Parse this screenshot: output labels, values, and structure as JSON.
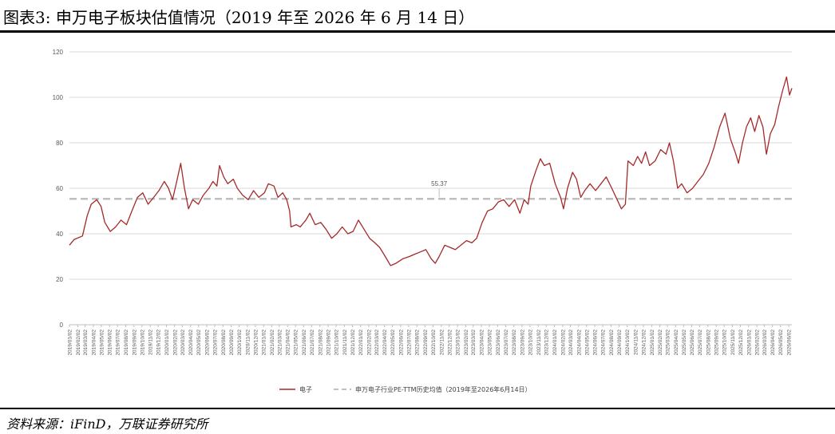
{
  "header": {
    "title": "图表3:  申万电子板块估值情况（2019 年至 2026 年 6 月 14 日）"
  },
  "footer": {
    "source": "资料来源：iFinD，万联证券研究所"
  },
  "chart_data": {
    "type": "line",
    "title": "",
    "xlabel": "",
    "ylabel": "",
    "ylim": [
      0,
      120
    ],
    "yticks": [
      0,
      20,
      40,
      60,
      80,
      100,
      120
    ],
    "grid": true,
    "legend_position": "bottom",
    "colors": {
      "series": "#a52a2a",
      "reference": "#bfbfbf",
      "grid": "#d9d9d9"
    },
    "x_tick_labels": [
      "2019/01/02",
      "2019/02/02",
      "2019/03/02",
      "2019/04/02",
      "2019/05/02",
      "2019/06/02",
      "2019/07/02",
      "2019/08/02",
      "2019/09/02",
      "2019/10/02",
      "2019/11/02",
      "2019/12/02",
      "2020/01/02",
      "2020/02/02",
      "2020/03/02",
      "2020/04/02",
      "2020/05/02",
      "2020/06/02",
      "2020/07/02",
      "2020/08/02",
      "2020/09/02",
      "2020/10/02",
      "2020/11/02",
      "2020/12/02",
      "2021/01/02",
      "2021/02/02",
      "2021/03/02",
      "2021/04/02",
      "2021/05/02",
      "2021/06/02",
      "2021/07/02",
      "2021/08/02",
      "2021/09/02",
      "2021/10/02",
      "2021/11/02",
      "2021/12/02",
      "2022/01/02",
      "2022/02/02",
      "2022/03/02",
      "2022/04/02",
      "2022/05/02",
      "2022/06/02",
      "2022/07/02",
      "2022/08/02",
      "2022/09/02",
      "2022/10/02",
      "2022/11/02",
      "2022/12/02",
      "2023/01/02",
      "2023/02/02",
      "2023/03/02",
      "2023/04/02",
      "2023/05/02",
      "2023/06/02",
      "2023/07/02",
      "2023/08/02",
      "2023/09/02",
      "2023/10/02",
      "2023/11/02",
      "2023/12/02",
      "2024/01/02",
      "2024/02/02",
      "2024/03/02",
      "2024/04/02",
      "2024/05/02",
      "2024/06/02",
      "2024/07/02",
      "2024/08/02",
      "2024/09/02",
      "2024/10/02",
      "2024/11/02",
      "2024/12/02",
      "2025/01/02",
      "2025/02/02",
      "2025/03/02",
      "2025/04/02",
      "2025/05/02",
      "2025/06/02",
      "2025/07/02",
      "2025/08/02",
      "2025/09/02",
      "2025/10/02",
      "2025/11/02",
      "2025/12/02",
      "2026/01/02",
      "2026/02/02",
      "2026/03/02",
      "2026/04/02",
      "2026/05/02",
      "2026/06/02"
    ],
    "series": [
      {
        "name": "电子",
        "points": [
          [
            "2019/01/02",
            35
          ],
          [
            "2019/01/20",
            37.5
          ],
          [
            "2019/02/20",
            39
          ],
          [
            "2019/03/10",
            48
          ],
          [
            "2019/03/25",
            53
          ],
          [
            "2019/04/15",
            55
          ],
          [
            "2019/05/01",
            52
          ],
          [
            "2019/05/15",
            45
          ],
          [
            "2019/06/05",
            41
          ],
          [
            "2019/06/25",
            43
          ],
          [
            "2019/07/15",
            46
          ],
          [
            "2019/08/05",
            44
          ],
          [
            "2019/08/25",
            50
          ],
          [
            "2019/09/15",
            56
          ],
          [
            "2019/10/05",
            58
          ],
          [
            "2019/10/25",
            53
          ],
          [
            "2019/11/15",
            56
          ],
          [
            "2019/12/05",
            59
          ],
          [
            "2019/12/25",
            63
          ],
          [
            "2020/01/10",
            60
          ],
          [
            "2020/01/25",
            55
          ],
          [
            "2020/02/10",
            63
          ],
          [
            "2020/02/25",
            71
          ],
          [
            "2020/03/10",
            60
          ],
          [
            "2020/03/25",
            51
          ],
          [
            "2020/04/10",
            55
          ],
          [
            "2020/05/01",
            53
          ],
          [
            "2020/05/20",
            57
          ],
          [
            "2020/06/10",
            60
          ],
          [
            "2020/06/25",
            63
          ],
          [
            "2020/07/10",
            61
          ],
          [
            "2020/07/20",
            70
          ],
          [
            "2020/08/05",
            65
          ],
          [
            "2020/08/20",
            62
          ],
          [
            "2020/09/10",
            64
          ],
          [
            "2020/09/25",
            60
          ],
          [
            "2020/10/15",
            57
          ],
          [
            "2020/11/05",
            55
          ],
          [
            "2020/11/25",
            59
          ],
          [
            "2020/12/15",
            56
          ],
          [
            "2021/01/05",
            58
          ],
          [
            "2021/01/20",
            62
          ],
          [
            "2021/02/10",
            61
          ],
          [
            "2021/02/25",
            56
          ],
          [
            "2021/03/15",
            58
          ],
          [
            "2021/03/30",
            55
          ],
          [
            "2021/04/10",
            50
          ],
          [
            "2021/04/15",
            43
          ],
          [
            "2021/05/05",
            44
          ],
          [
            "2021/05/20",
            43
          ],
          [
            "2021/06/10",
            46
          ],
          [
            "2021/06/25",
            49
          ],
          [
            "2021/07/15",
            44
          ],
          [
            "2021/08/05",
            45
          ],
          [
            "2021/08/25",
            42
          ],
          [
            "2021/09/15",
            38
          ],
          [
            "2021/10/05",
            40
          ],
          [
            "2021/10/25",
            43
          ],
          [
            "2021/11/15",
            40
          ],
          [
            "2021/12/05",
            41
          ],
          [
            "2021/12/25",
            46
          ],
          [
            "2022/01/15",
            42
          ],
          [
            "2022/02/05",
            38
          ],
          [
            "2022/02/25",
            36
          ],
          [
            "2022/03/15",
            34
          ],
          [
            "2022/04/05",
            30
          ],
          [
            "2022/04/25",
            26
          ],
          [
            "2022/05/15",
            27
          ],
          [
            "2022/06/10",
            29
          ],
          [
            "2022/07/05",
            30
          ],
          [
            "2022/07/25",
            31
          ],
          [
            "2022/08/15",
            32
          ],
          [
            "2022/09/05",
            33
          ],
          [
            "2022/09/25",
            29
          ],
          [
            "2022/10/10",
            27
          ],
          [
            "2022/10/25",
            30
          ],
          [
            "2022/11/15",
            35
          ],
          [
            "2022/12/05",
            34
          ],
          [
            "2022/12/25",
            33
          ],
          [
            "2023/01/15",
            35
          ],
          [
            "2023/02/05",
            37
          ],
          [
            "2023/02/25",
            36
          ],
          [
            "2023/03/15",
            38
          ],
          [
            "2023/04/05",
            45
          ],
          [
            "2023/04/25",
            50
          ],
          [
            "2023/05/15",
            51
          ],
          [
            "2023/06/05",
            54
          ],
          [
            "2023/06/25",
            55
          ],
          [
            "2023/07/15",
            52
          ],
          [
            "2023/08/05",
            55
          ],
          [
            "2023/08/25",
            49
          ],
          [
            "2023/09/10",
            55
          ],
          [
            "2023/09/25",
            53
          ],
          [
            "2023/10/05",
            61
          ],
          [
            "2023/10/25",
            68
          ],
          [
            "2023/11/10",
            73
          ],
          [
            "2023/11/25",
            70
          ],
          [
            "2023/12/15",
            71
          ],
          [
            "2024/01/05",
            62
          ],
          [
            "2024/01/25",
            56
          ],
          [
            "2024/02/05",
            51
          ],
          [
            "2024/02/20",
            60
          ],
          [
            "2024/03/10",
            67
          ],
          [
            "2024/03/25",
            64
          ],
          [
            "2024/04/10",
            56
          ],
          [
            "2024/04/25",
            59
          ],
          [
            "2024/05/15",
            62
          ],
          [
            "2024/06/05",
            59
          ],
          [
            "2024/06/25",
            62
          ],
          [
            "2024/07/15",
            65
          ],
          [
            "2024/08/05",
            60
          ],
          [
            "2024/08/25",
            55
          ],
          [
            "2024/09/10",
            51
          ],
          [
            "2024/09/25",
            53
          ],
          [
            "2024/10/05",
            72
          ],
          [
            "2024/10/25",
            70
          ],
          [
            "2024/11/10",
            74
          ],
          [
            "2024/11/25",
            71
          ],
          [
            "2024/12/10",
            76
          ],
          [
            "2024/12/25",
            70
          ],
          [
            "2025/01/15",
            72
          ],
          [
            "2025/02/05",
            77
          ],
          [
            "2025/02/25",
            75
          ],
          [
            "2025/03/10",
            80
          ],
          [
            "2025/03/25",
            72
          ],
          [
            "2025/04/10",
            60
          ],
          [
            "2025/04/25",
            62
          ],
          [
            "2025/05/15",
            58
          ],
          [
            "2025/06/05",
            60
          ],
          [
            "2025/06/25",
            63
          ],
          [
            "2025/07/15",
            66
          ],
          [
            "2025/08/05",
            71
          ],
          [
            "2025/08/25",
            78
          ],
          [
            "2025/09/15",
            87
          ],
          [
            "2025/10/05",
            93
          ],
          [
            "2025/10/25",
            82
          ],
          [
            "2025/11/15",
            75
          ],
          [
            "2025/11/25",
            71
          ],
          [
            "2025/12/10",
            80
          ],
          [
            "2025/12/25",
            87
          ],
          [
            "2026/01/10",
            91
          ],
          [
            "2026/01/25",
            85
          ],
          [
            "2026/02/10",
            92
          ],
          [
            "2026/02/25",
            87
          ],
          [
            "2026/03/10",
            75
          ],
          [
            "2026/03/25",
            84
          ],
          [
            "2026/04/10",
            88
          ],
          [
            "2026/04/25",
            96
          ],
          [
            "2026/05/10",
            103
          ],
          [
            "2026/05/25",
            109
          ],
          [
            "2026/06/05",
            101
          ],
          [
            "2026/06/14",
            104
          ]
        ]
      },
      {
        "name": "申万电子行业PE-TTM历史均值（2019年至2026年6月14日）",
        "style": "dashed",
        "value": 55.37,
        "label": "55.37"
      }
    ]
  }
}
